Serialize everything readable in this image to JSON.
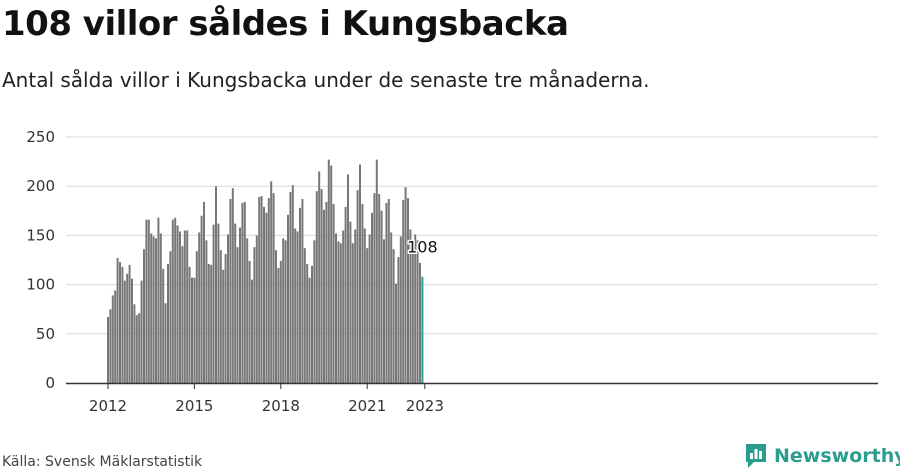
{
  "header": {
    "title": "108 villor såldes i Kungsbacka",
    "subtitle": "Antal sålda villor i Kungsbacka under de senaste tre månaderna."
  },
  "footer": {
    "source": "Källa: Svensk Mäklarstatistik",
    "brand": "Newsworthy",
    "brand_color": "#2a9d8f"
  },
  "chart_data": {
    "type": "bar",
    "title": "108 villor såldes i Kungsbacka",
    "subtitle": "Antal sålda villor i Kungsbacka under de senaste tre månaderna.",
    "xlabel": "",
    "ylabel": "",
    "ylim": [
      0,
      250
    ],
    "yticks": [
      "0",
      "50",
      "100",
      "150",
      "200",
      "250"
    ],
    "xticks": [
      "2012",
      "2015",
      "2018",
      "2021",
      "2023"
    ],
    "grid": true,
    "bar_color": "#777777",
    "highlight_color": "#2a9d8f",
    "highlight_label": "108",
    "series": [
      {
        "values": [
          67,
          75,
          89,
          94,
          127,
          123,
          118,
          104,
          111,
          120,
          106,
          80,
          69,
          71,
          104,
          136,
          166,
          166,
          152,
          149,
          147,
          168,
          152,
          116,
          81,
          121,
          134,
          166,
          168,
          160,
          154,
          139,
          155,
          155,
          118,
          107,
          107,
          134,
          153,
          170,
          184,
          145,
          121,
          120,
          161,
          200,
          162,
          135,
          115,
          131,
          151,
          187,
          198,
          162,
          138,
          158,
          183,
          184,
          147,
          124,
          105,
          138,
          150,
          189,
          190,
          179,
          173,
          188,
          205,
          193,
          135,
          117,
          124,
          147,
          145,
          171,
          194,
          201,
          157,
          154,
          178,
          187,
          137,
          121,
          107,
          119,
          145,
          195,
          215,
          197,
          176,
          184,
          227,
          221,
          182,
          152,
          144,
          142,
          155,
          179,
          212,
          164,
          142,
          156,
          196,
          222,
          182,
          157,
          137,
          151,
          173,
          193,
          227,
          192,
          175,
          146,
          183,
          187,
          153,
          136,
          101,
          128,
          149,
          186,
          199,
          188,
          156,
          137,
          151,
          145,
          122,
          108
        ]
      }
    ]
  }
}
